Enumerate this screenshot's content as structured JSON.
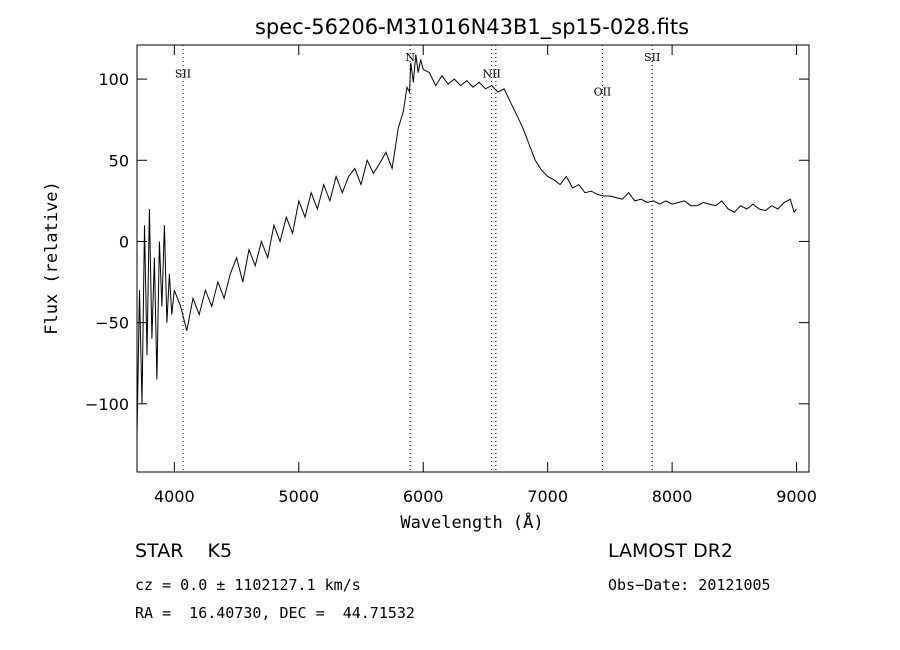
{
  "chart_data": {
    "type": "line",
    "title": "spec-56206-M31016N43B1_sp15-028.fits",
    "xlabel": "Wavelength (Å)",
    "ylabel": "Flux (relative)",
    "xlim": [
      3700,
      9100
    ],
    "ylim": [
      -142,
      121
    ],
    "xticks": [
      {
        "value": 4000,
        "label": "4000"
      },
      {
        "value": 5000,
        "label": "5000"
      },
      {
        "value": 6000,
        "label": "6000"
      },
      {
        "value": 7000,
        "label": "7000"
      },
      {
        "value": 8000,
        "label": "8000"
      },
      {
        "value": 9000,
        "label": "9000"
      }
    ],
    "yticks": [
      {
        "value": -100,
        "label": "−100"
      },
      {
        "value": -50,
        "label": "−50"
      },
      {
        "value": 0,
        "label": "0"
      },
      {
        "value": 50,
        "label": "50"
      },
      {
        "value": 100,
        "label": "100"
      }
    ],
    "grid": false,
    "series": [
      {
        "x": [
          3700,
          3720,
          3740,
          3760,
          3780,
          3800,
          3820,
          3840,
          3860,
          3880,
          3900,
          3920,
          3940,
          3960,
          3980,
          4000,
          4050,
          4100,
          4150,
          4200,
          4250,
          4300,
          4350,
          4400,
          4450,
          4500,
          4550,
          4600,
          4650,
          4700,
          4750,
          4800,
          4850,
          4900,
          4950,
          5000,
          5050,
          5100,
          5150,
          5200,
          5250,
          5300,
          5350,
          5400,
          5450,
          5500,
          5550,
          5600,
          5650,
          5700,
          5750,
          5800,
          5840,
          5870,
          5890,
          5900,
          5920,
          5940,
          5960,
          5980,
          6000,
          6050,
          6100,
          6150,
          6200,
          6250,
          6300,
          6350,
          6400,
          6450,
          6500,
          6550,
          6600,
          6650,
          6700,
          6750,
          6800,
          6850,
          6900,
          6950,
          7000,
          7050,
          7100,
          7150,
          7200,
          7250,
          7300,
          7350,
          7400,
          7450,
          7500,
          7550,
          7600,
          7650,
          7700,
          7750,
          7800,
          7850,
          7900,
          7950,
          8000,
          8050,
          8100,
          8150,
          8200,
          8250,
          8300,
          8350,
          8400,
          8450,
          8500,
          8550,
          8600,
          8650,
          8700,
          8750,
          8800,
          8850,
          8900,
          8950,
          8980,
          9000
        ],
        "y": [
          -120,
          -30,
          -100,
          10,
          -70,
          20,
          -60,
          -10,
          -85,
          0,
          -40,
          10,
          -50,
          -20,
          -45,
          -30,
          -40,
          -55,
          -35,
          -45,
          -30,
          -40,
          -25,
          -35,
          -20,
          -10,
          -25,
          -5,
          -15,
          0,
          -10,
          10,
          0,
          15,
          5,
          25,
          15,
          30,
          20,
          35,
          25,
          40,
          30,
          40,
          45,
          35,
          50,
          42,
          48,
          55,
          45,
          70,
          80,
          95,
          92,
          110,
          98,
          115,
          104,
          112,
          106,
          104,
          96,
          102,
          97,
          100,
          96,
          99,
          95,
          98,
          94,
          96,
          92,
          94,
          86,
          78,
          70,
          60,
          50,
          44,
          40,
          38,
          35,
          40,
          33,
          35,
          30,
          31,
          29,
          28,
          28,
          27,
          26,
          30,
          25,
          26,
          24,
          25,
          23,
          25,
          23,
          24,
          25,
          22,
          22,
          24,
          23,
          22,
          25,
          20,
          18,
          22,
          20,
          23,
          20,
          19,
          22,
          20,
          24,
          26,
          18,
          20
        ]
      }
    ],
    "lines": [
      {
        "x": 4070,
        "label": "SII",
        "label_y": 101
      },
      {
        "x": 5895,
        "label": "N",
        "label_y": 111
      },
      {
        "x": 6550,
        "label": "NII",
        "label_y": 101
      },
      {
        "x": 6584,
        "label": "",
        "label_y": 0
      },
      {
        "x": 7440,
        "label": "OII",
        "label_y": 90
      },
      {
        "x": 7840,
        "label": "SII",
        "label_y": 111
      }
    ]
  },
  "info": {
    "object": "STAR    K5",
    "survey": "LAMOST DR2",
    "velocity": "cz = 0.0 ± 1102127.1 km/s",
    "obs_date": "Obs−Date: 20121005",
    "coords": "RA =  16.40730, DEC =  44.71532"
  }
}
